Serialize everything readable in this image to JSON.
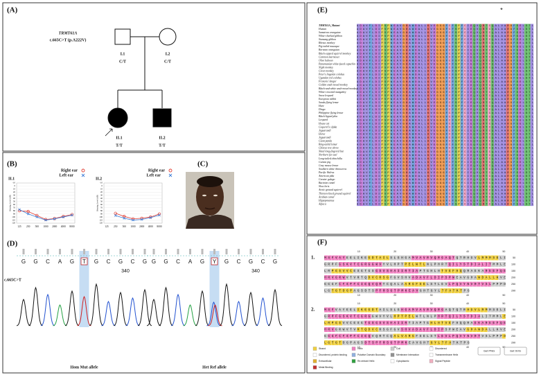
{
  "chart_data": [
    {
      "type": "line",
      "title": "II.1",
      "ylabel": "Hearing Level (dB)",
      "categories": [
        "125",
        "250",
        "500",
        "1000",
        "2000",
        "4000",
        "8000"
      ],
      "series": [
        {
          "name": "Right ear",
          "color": "#e03c31",
          "marker": "o",
          "values": [
            80,
            82,
            95,
            108,
            105,
            98,
            92
          ]
        },
        {
          "name": "Left ear",
          "color": "#3b7bd6",
          "marker": "x",
          "values": [
            76,
            90,
            100,
            110,
            106,
            100,
            94
          ]
        }
      ],
      "ylim": [
        -10,
        120
      ],
      "yticks": [
        -10,
        0,
        10,
        20,
        30,
        40,
        50,
        60,
        70,
        80,
        90,
        100,
        110,
        120
      ],
      "inverted": true
    },
    {
      "type": "line",
      "title": "II.2",
      "ylabel": "Hearing Level (dB)",
      "categories": [
        "125",
        "250",
        "500",
        "1000",
        "2000",
        "4000",
        "8000"
      ],
      "series": [
        {
          "name": "Right ear",
          "color": "#e03c31",
          "marker": "o",
          "values": [
            null,
            88,
            98,
            106,
            104,
            100,
            90
          ]
        },
        {
          "name": "Left ear",
          "color": "#3b7bd6",
          "marker": "x",
          "values": [
            null,
            95,
            104,
            110,
            108,
            102,
            94
          ]
        }
      ],
      "ylim": [
        -10,
        120
      ],
      "yticks": [
        -10,
        0,
        10,
        20,
        30,
        40,
        50,
        60,
        70,
        80,
        90,
        100,
        110,
        120
      ],
      "inverted": true
    }
  ],
  "panel_a": {
    "label": "(A)",
    "gene": "TRMT61A",
    "variant": "c.665C>T (p.A222V)",
    "individuals": [
      {
        "id": "I.1",
        "genotype": "C/T"
      },
      {
        "id": "I.2",
        "genotype": "C/T"
      },
      {
        "id": "II.1",
        "genotype": "T/T"
      },
      {
        "id": "II.2",
        "genotype": "T/T"
      }
    ]
  },
  "panel_b": {
    "label": "(B)"
  },
  "panel_c": {
    "label": "(C)"
  },
  "panel_d": {
    "label": "(D)",
    "variant": "c.665C>T",
    "traces": [
      {
        "bases": [
          "G",
          "G",
          "C",
          "A",
          "G",
          "T",
          "G",
          "C",
          "G",
          "C",
          "G"
        ],
        "position": "340",
        "caption": "Hom Mut allele"
      },
      {
        "bases": [
          "G",
          "G",
          "C",
          "A",
          "G",
          "Y",
          "G",
          "C",
          "G",
          "C",
          "G"
        ],
        "position": "340",
        "caption": "Het Ref allele"
      }
    ]
  },
  "panel_e": {
    "label": "(E)",
    "marker": "*",
    "mutant": {
      "name": "TRMT61A_Mutant",
      "sequence": "ADAVFLDIPSPWEAVGHAWDALLKVEGGGFCFSPFCIEQVQRTCQALVARGFSELSTL"
    },
    "sequence": "ADAVFLDIPSPWEAVGHAWDALLKVEGGGFCFSPFCIEQVQRTCQALAARGFSELSTL",
    "species": [
      "Human",
      "Sumatran orangutan",
      "White-cheeked gibbon",
      "Siamang gibbon",
      "Rhesus monkey",
      "Pig-tailed macaque",
      "Bornean orangutan",
      "Black-capped squirrel monkey",
      "Common marmoset",
      "Olive baboon",
      "Panamanian white-faced capuchin",
      "Night monkey",
      "Green monkey",
      "Peter's Angolan colobus",
      "Ugandan red colobus",
      "Francois' langur",
      "Golden snub-nosed monkey",
      "Black-and-white snub-nosed monkey",
      "White-crowned mangabey",
      "Snow leopard",
      "European rabbit",
      "Sunda flying lemur",
      "Hare",
      "Dingo",
      "Philippine flying lemur",
      "Black-lipped pika",
      "Leopard",
      "House cat",
      "Coquerel's sifaka",
      "Jaguarundi",
      "Horse",
      "Jaguarundi",
      "Giant panda",
      "Ring-tailed lemur",
      "Chinese tree shrew",
      "Natal long-fingered bat",
      "Northern fur seal",
      "Long-tailed chinchilla",
      "Guinea pig",
      "Gray mouse lemur",
      "Southern white rhinoceros",
      "Pacific Walrus",
      "American pika",
      "Greater galago",
      "Bactrian camel",
      "Slow loris",
      "Arctic ground squirrel",
      "Thirteen-lined ground squirrel",
      "Arabian camel",
      "Hippopotamus",
      "Alpaca"
    ]
  },
  "panel_f": {
    "label": "(F)",
    "ruler": [
      10,
      20,
      30,
      40,
      50
    ],
    "blocks": [
      {
        "label": "1.",
        "lines": [
          "MSFVAYEELIKEGDTAILSLGHGAMVAVRVQRGAQTQTRHGVLRMRSELI",
          "GRPFGSKVTCGRGGWVYVLHPTPELWTLNLPHRTQILYSTDIALITMMLE",
          "LRPGSVVCESGTGSGSVSHAIIRTIAPTGHLHTVEFHQQRAEKAREEFQE",
          "HRVGRWVTVRTQDVCRSGFGVSHVADAVFLDIPSPWEAVGHAWDALLKVE",
          "GGGFCFSPFCIEQVQRTCQALAARGFSELSTLEVLPQVYNVRTVSLPPPD",
          "LGTGTDGPAGSDTSPFRSGTPMKEAVGHTGYLTFATKTPG"
        ],
        "ends": [
          50,
          100,
          150,
          200,
          250,
          290
        ]
      },
      {
        "label": "2.",
        "lines": [
          "MSFVAYEELIKEGDTAILSLGHGAMVAVRVQRGAQTQTRHGVLRMRSELI",
          "GRPFGSKVTCGRGGWVYVLHPTPELWTLNLPHRTQILYSTDIALITMMLE",
          "LRPGSVVCESGTGSGSVSHAIIRTIAPTGHLHTVEFHQQRAEKAREEFQE",
          "HRVGRWVTVRTQDVCRSGFGVSHVADAVFLDIPSPWEAVGHAWDALLKVE",
          "GGGFCFSPFCIEQVQRTCQALVARGFSELSTLEVLPQVYNVRTVSLPPPD",
          "LGTGTDGPAGSDTSPFRSGTPMKEAVGHTGYLTFATKTPG"
        ],
        "ends": [
          50,
          100,
          150,
          200,
          250,
          290
        ]
      }
    ],
    "legend": [
      {
        "name": "Strand",
        "color": "#f0d040"
      },
      {
        "name": "Helix",
        "color": "#f080c0"
      },
      {
        "name": "Coil",
        "color": "#cccccc"
      },
      {
        "name": "Disordered",
        "color": "#ffffff"
      },
      {
        "name": "Disordered, protein binding",
        "color": "#ffffff"
      },
      {
        "name": "Putative Domain Boundary",
        "color": "#8fb0e0"
      },
      {
        "name": "Membrane Interaction",
        "color": "#909090"
      },
      {
        "name": "Transmembrane Helix",
        "color": "#ffffff"
      },
      {
        "name": "Extracellular",
        "color": "#e0b030"
      },
      {
        "name": "Re-entrant Helix",
        "color": "#30a040"
      },
      {
        "name": "Cytoplasmic",
        "color": "#ffffff"
      },
      {
        "name": "Signal Peptide",
        "color": "#f0b0c0"
      },
      {
        "name": "Metal Binding",
        "color": "#c03030"
      }
    ],
    "buttons": [
      "Get PNG",
      "Get SVG"
    ]
  }
}
